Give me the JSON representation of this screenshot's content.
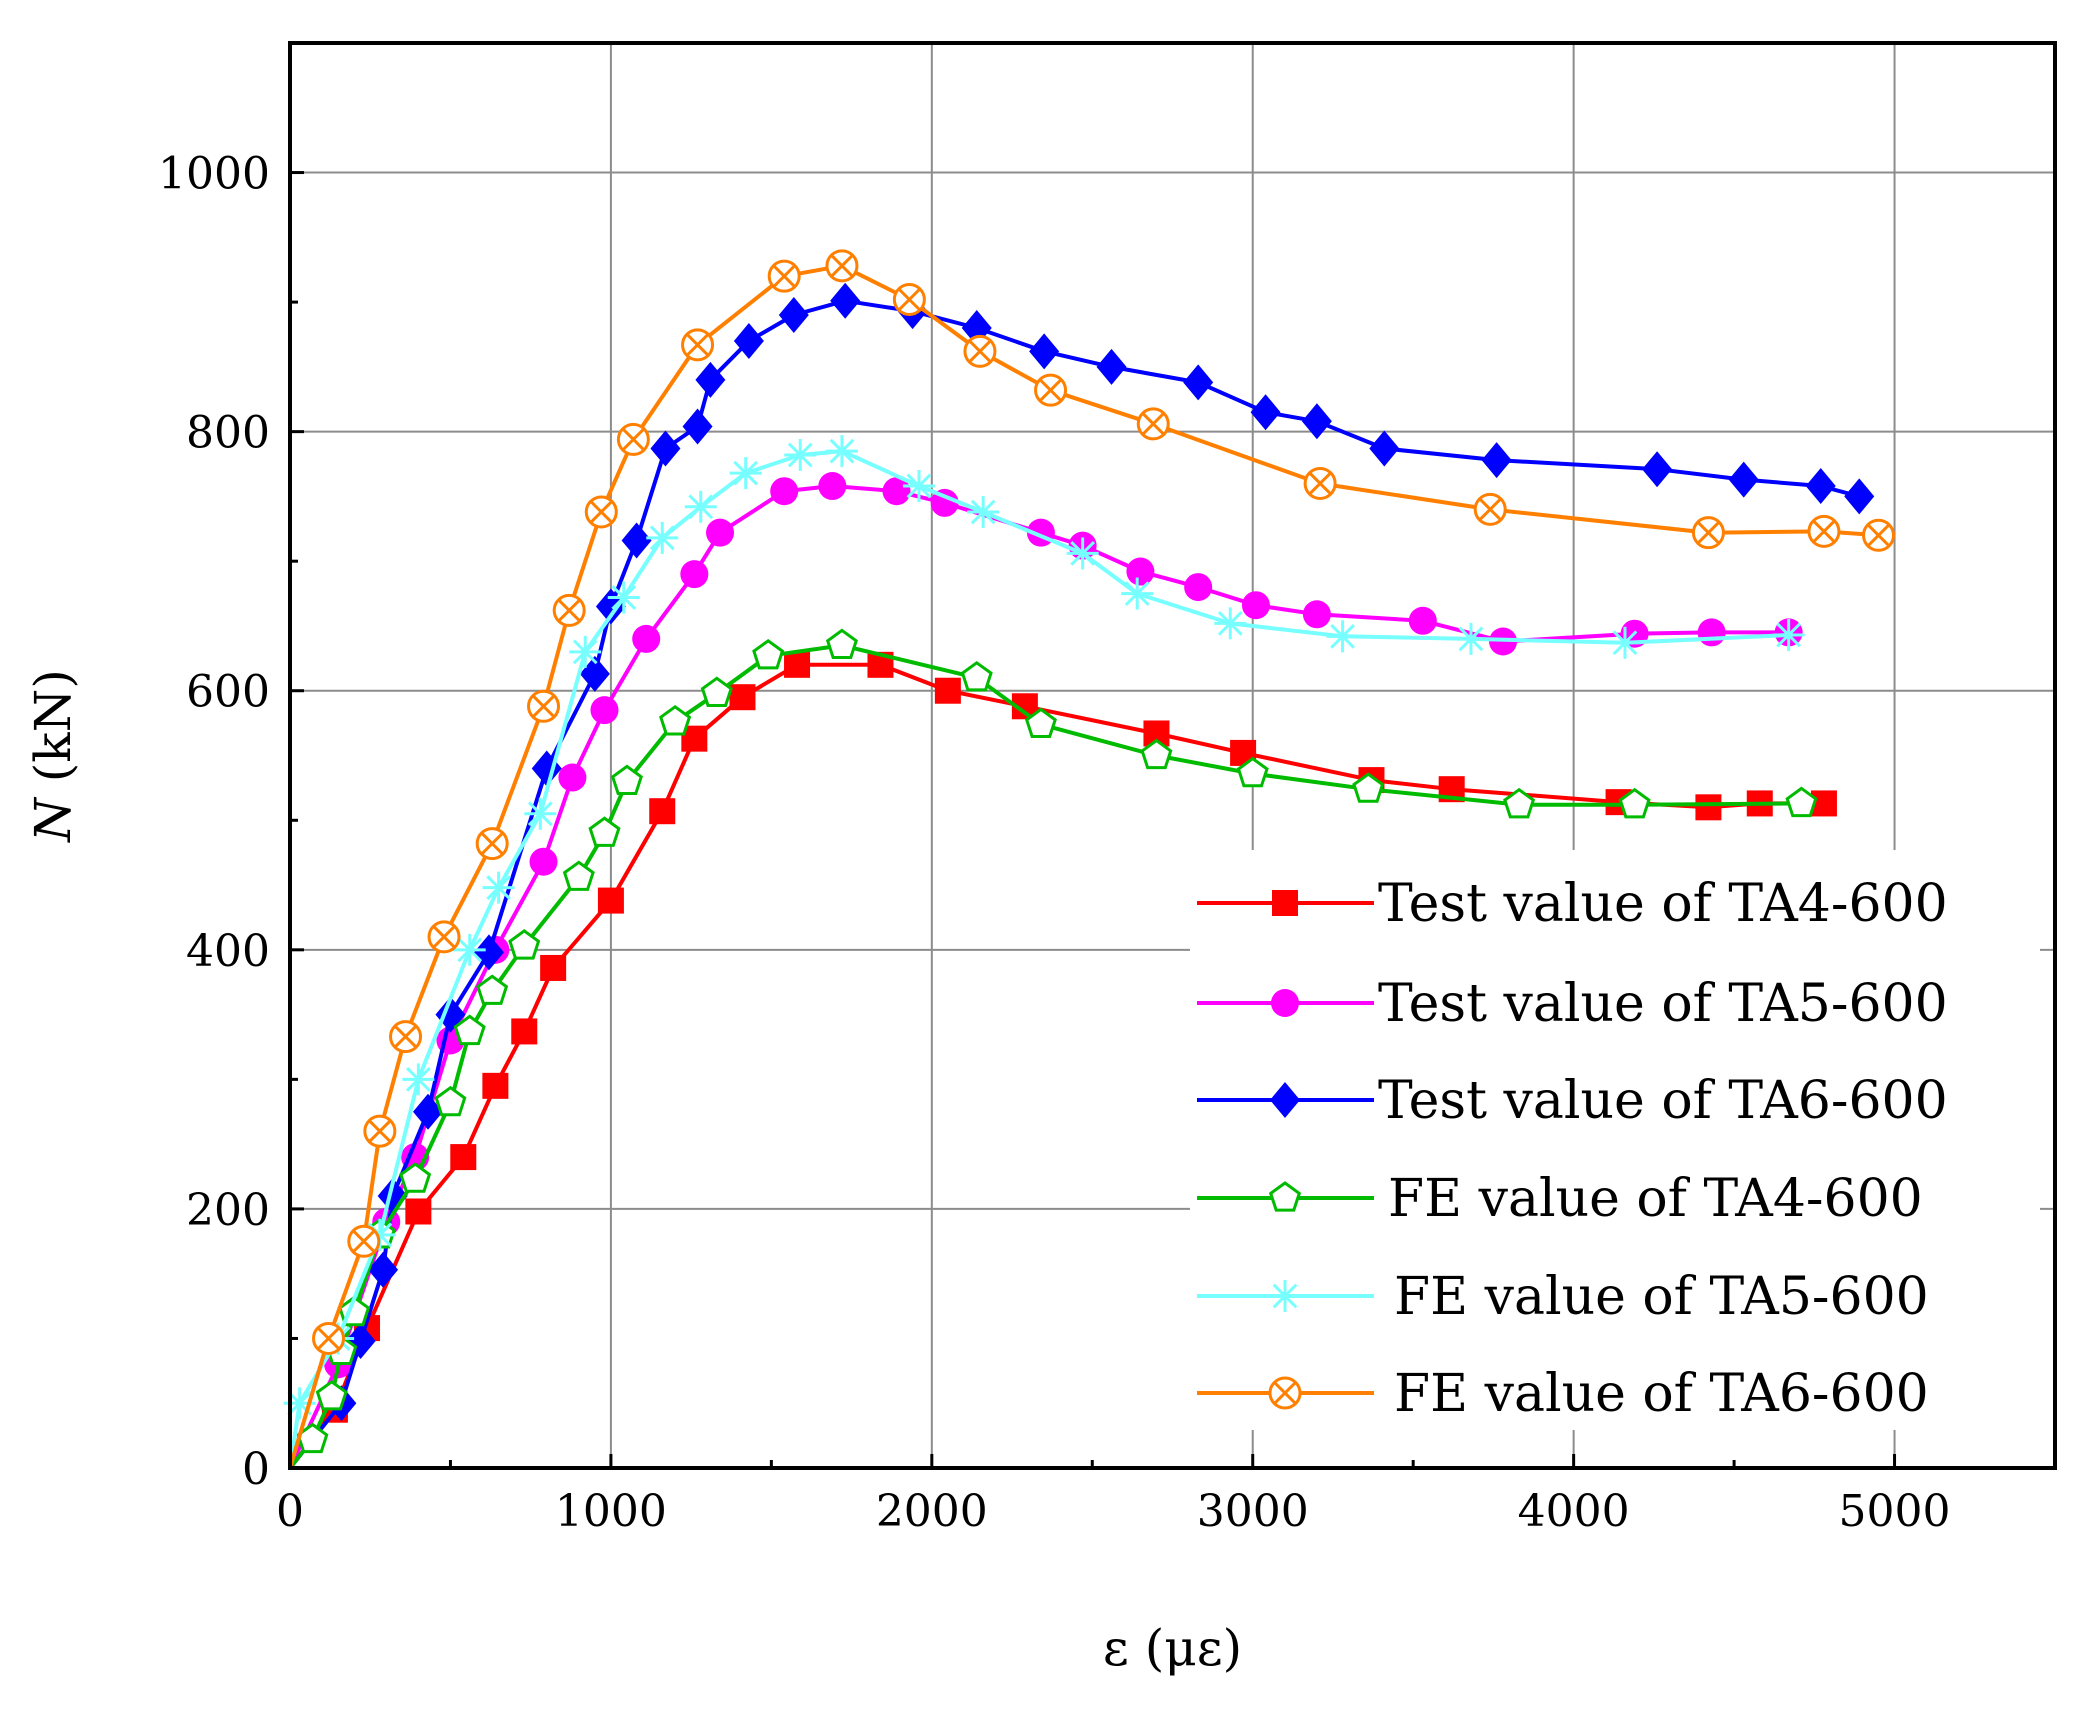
{
  "chart_data": {
    "type": "line",
    "title": "",
    "xlabel": "ε (με)",
    "ylabel_italic": "N",
    "ylabel_rest": " (kN)",
    "xlim": [
      0,
      5500
    ],
    "ylim": [
      0,
      1100
    ],
    "xticks": [
      0,
      1000,
      2000,
      3000,
      4000,
      5000
    ],
    "yticks": [
      0,
      200,
      400,
      600,
      800,
      1000
    ],
    "grid": true,
    "legend_position": "bottom-right",
    "series": [
      {
        "name": "Test value of TA4-600",
        "color": "#ff0000",
        "marker": "filled-square",
        "x": [
          0,
          140,
          240,
          400,
          540,
          640,
          730,
          820,
          1000,
          1160,
          1260,
          1410,
          1580,
          1840,
          2050,
          2290,
          2700,
          2970,
          3370,
          3620,
          4140,
          4420,
          4580,
          4780
        ],
        "y": [
          0,
          45,
          108,
          198,
          240,
          295,
          337,
          386,
          438,
          507,
          563,
          595,
          620,
          620,
          600,
          588,
          567,
          552,
          531,
          524,
          514,
          510,
          513,
          513
        ]
      },
      {
        "name": "Test value of TA5-600",
        "color": "#ff00ff",
        "marker": "filled-circle",
        "x": [
          0,
          150,
          300,
          390,
          500,
          640,
          790,
          880,
          980,
          1110,
          1260,
          1340,
          1540,
          1690,
          1890,
          2040,
          2340,
          2470,
          2650,
          2830,
          3010,
          3200,
          3530,
          3780,
          4190,
          4430,
          4670
        ],
        "y": [
          0,
          80,
          190,
          240,
          330,
          400,
          468,
          533,
          585,
          640,
          690,
          722,
          754,
          758,
          754,
          745,
          722,
          712,
          692,
          680,
          666,
          659,
          654,
          638,
          644,
          645,
          645
        ]
      },
      {
        "name": "Test value of TA6-600",
        "color": "#0000ff",
        "marker": "filled-diamond",
        "x": [
          0,
          160,
          220,
          290,
          320,
          430,
          500,
          620,
          800,
          950,
          1000,
          1080,
          1170,
          1270,
          1310,
          1430,
          1570,
          1730,
          1940,
          2140,
          2350,
          2560,
          2830,
          3040,
          3200,
          3410,
          3760,
          4260,
          4530,
          4770,
          4890
        ],
        "y": [
          0,
          50,
          98,
          153,
          210,
          275,
          350,
          398,
          540,
          613,
          665,
          716,
          787,
          804,
          840,
          870,
          890,
          901,
          893,
          880,
          862,
          850,
          838,
          815,
          808,
          787,
          778,
          771,
          763,
          758,
          750
        ]
      },
      {
        "name": "FE value of TA4-600",
        "color": "#00bb00",
        "marker": "open-pentagon",
        "x": [
          0,
          70,
          130,
          160,
          200,
          280,
          390,
          500,
          560,
          630,
          730,
          900,
          980,
          1050,
          1200,
          1330,
          1490,
          1720,
          2140,
          2340,
          2700,
          3000,
          3360,
          3830,
          4190,
          4710
        ],
        "y": [
          0,
          22,
          55,
          90,
          120,
          180,
          223,
          282,
          337,
          368,
          403,
          456,
          490,
          530,
          576,
          598,
          627,
          635,
          610,
          574,
          550,
          536,
          524,
          512,
          512,
          513
        ]
      },
      {
        "name": "FE value of TA5-600",
        "color": "#77ffff",
        "marker": "asterisk",
        "x": [
          0,
          30,
          150,
          280,
          400,
          560,
          650,
          780,
          920,
          1040,
          1160,
          1280,
          1420,
          1590,
          1720,
          1960,
          2160,
          2470,
          2640,
          2930,
          3280,
          3680,
          4160,
          4670
        ],
        "y": [
          0,
          50,
          100,
          180,
          300,
          400,
          448,
          505,
          630,
          672,
          718,
          742,
          768,
          782,
          785,
          758,
          738,
          706,
          675,
          652,
          642,
          640,
          637,
          643
        ]
      },
      {
        "name": "FE value of TA6-600",
        "color": "#ff8000",
        "marker": "circle-x",
        "x": [
          0,
          120,
          230,
          280,
          360,
          480,
          630,
          790,
          870,
          970,
          1070,
          1270,
          1540,
          1720,
          1930,
          2150,
          2370,
          2690,
          3210,
          3740,
          4420,
          4780,
          4950
        ],
        "y": [
          0,
          100,
          175,
          260,
          333,
          410,
          482,
          588,
          662,
          738,
          794,
          867,
          920,
          928,
          902,
          862,
          832,
          806,
          760,
          740,
          722,
          723,
          720
        ]
      }
    ]
  }
}
